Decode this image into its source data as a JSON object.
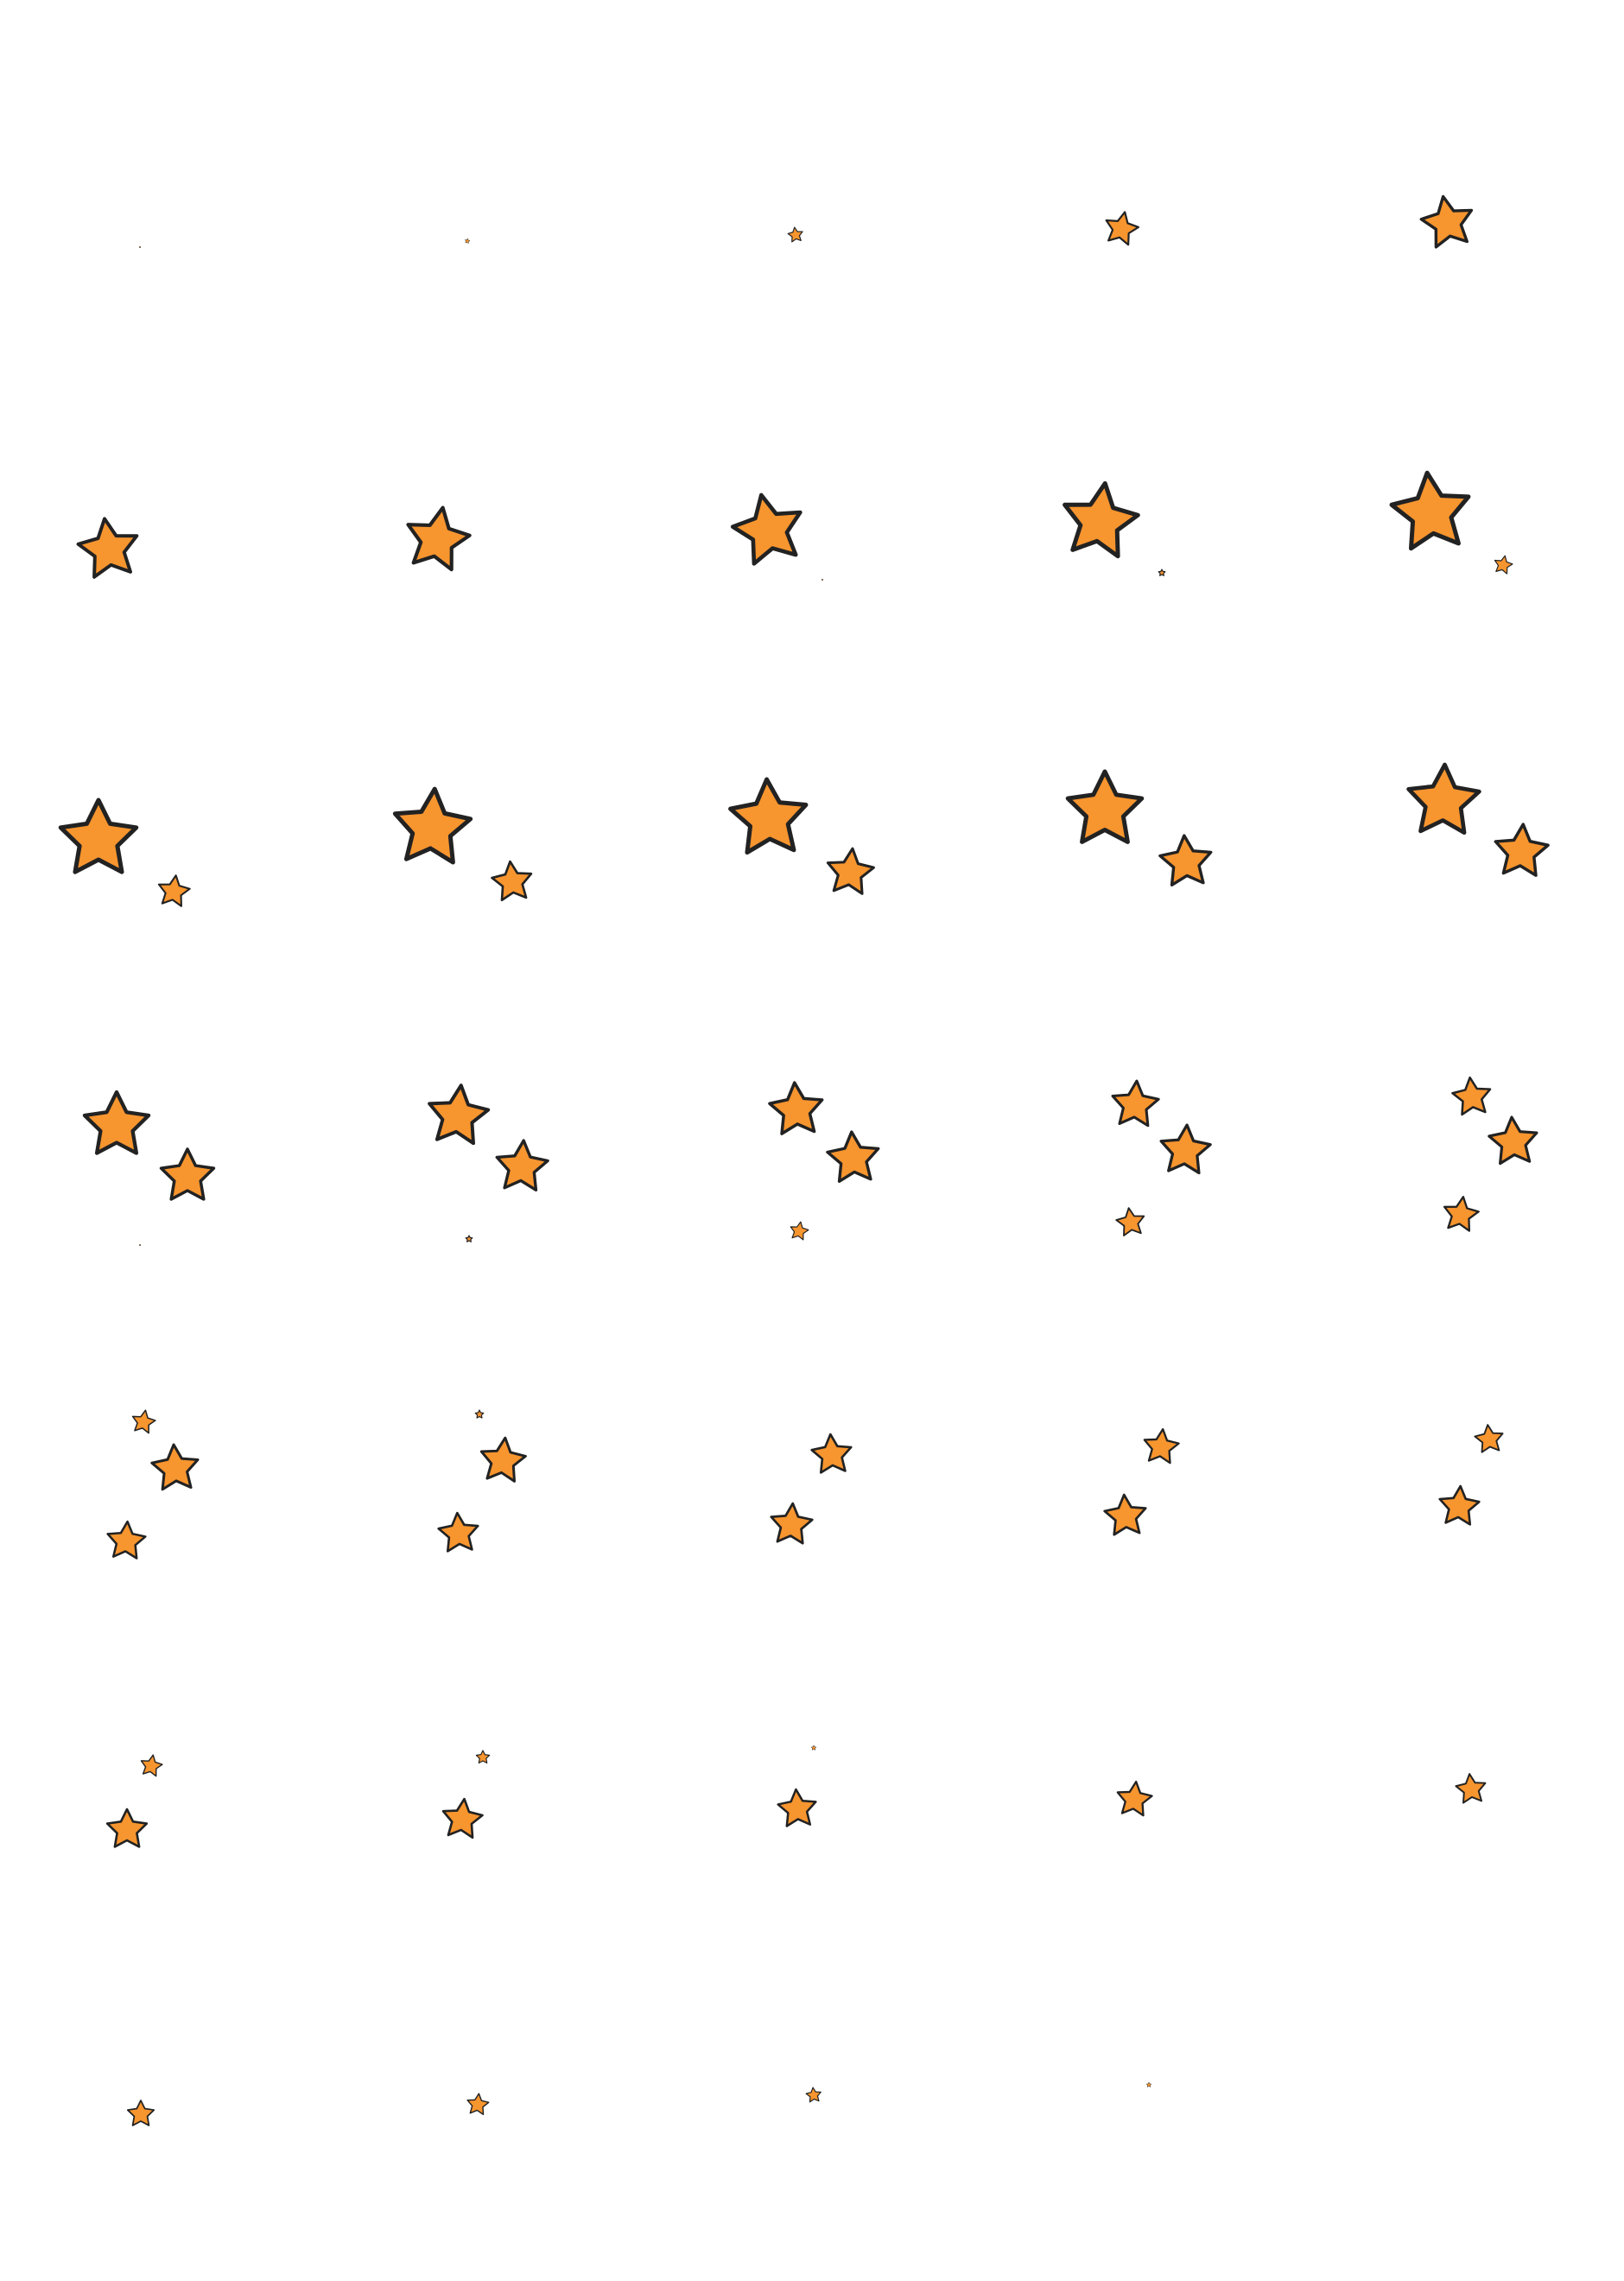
{
  "sprite_sheet": {
    "description_free": true,
    "background_color": "#ffffff",
    "star_fill_color": "#F7952F",
    "star_outline_color": "#222222",
    "grid": {
      "rows": 7,
      "columns": 5,
      "frame_count": 34
    },
    "icon": "star-icon"
  }
}
